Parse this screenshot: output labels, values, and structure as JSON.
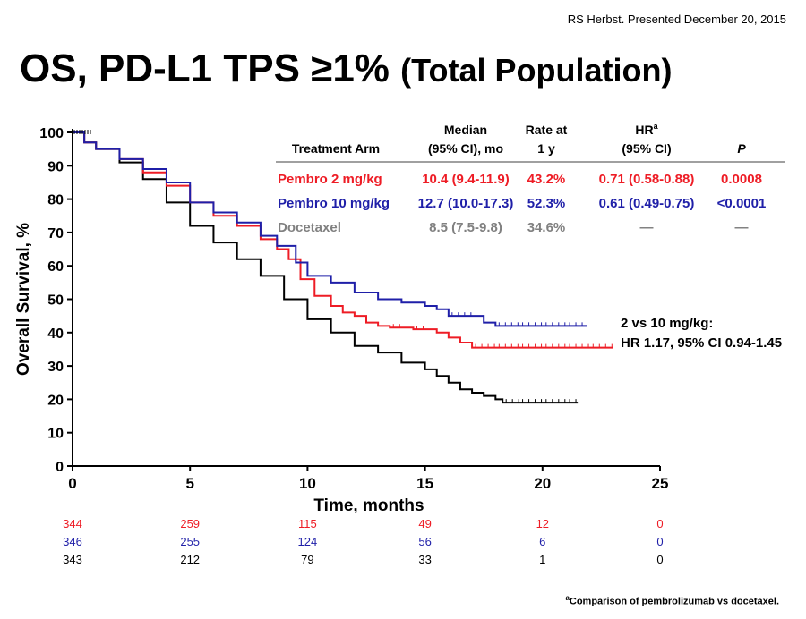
{
  "credit": "RS Herbst. Presented December 20, 2015",
  "title_main": "OS, PD-L1 TPS ≥1%",
  "title_sub": "(Total Population)",
  "table": {
    "headers": [
      [
        "Treatment Arm"
      ],
      [
        "Median",
        "(95% CI), mo"
      ],
      [
        "Rate at",
        "1 y"
      ],
      [
        "HR",
        "(95% CI)"
      ],
      [
        "P"
      ]
    ],
    "hr_sup": "a",
    "rows": [
      {
        "arm": "Pembro 2 mg/kg",
        "median": "10.4 (9.4-11.9)",
        "rate": "43.2%",
        "hr": "0.71 (0.58-0.88)",
        "p": "0.0008",
        "color": "#ee1c25"
      },
      {
        "arm": "Pembro 10 mg/kg",
        "median": "12.7 (10.0-17.3)",
        "rate": "52.3%",
        "hr": "0.61 (0.49-0.75)",
        "p": "<0.0001",
        "color": "#1f1fa8"
      },
      {
        "arm": "Docetaxel",
        "median": "8.5 (7.5-9.8)",
        "rate": "34.6%",
        "hr": "—",
        "p": "—",
        "color": "#808080"
      }
    ]
  },
  "comparison": {
    "line1": "2 vs 10 mg/kg:",
    "line2": "HR 1.17, 95% CI 0.94-1.45"
  },
  "footnote": {
    "sup": "a",
    "text": "Comparison of pembrolizumab vs docetaxel."
  },
  "chart_data": {
    "type": "line",
    "xlabel": "Time, months",
    "ylabel": "Overall Survival, %",
    "xlim": [
      0,
      25
    ],
    "ylim": [
      0,
      100
    ],
    "xticks": [
      0,
      5,
      10,
      15,
      20,
      25
    ],
    "yticks": [
      0,
      10,
      20,
      30,
      40,
      50,
      60,
      70,
      80,
      90,
      100
    ],
    "series": [
      {
        "color": "#ee1c25",
        "step": true,
        "x": [
          0,
          0.5,
          1,
          2,
          3,
          4,
          5,
          6,
          7,
          8,
          8.7,
          9.2,
          9.7,
          10.3,
          11,
          11.5,
          12,
          12.5,
          13,
          13.5,
          14,
          14.5,
          15,
          15.5,
          16,
          16.5,
          17,
          18,
          19,
          20,
          21,
          22,
          23
        ],
        "y": [
          100,
          97,
          95,
          92,
          88,
          84,
          79,
          75,
          72,
          68,
          65,
          62,
          56,
          51,
          48,
          46,
          45,
          43,
          42,
          41.5,
          41.5,
          41,
          41,
          40,
          38.5,
          37,
          35.5,
          35.5,
          35.5,
          35.5,
          35.5,
          35.5,
          35.5
        ]
      },
      {
        "color": "#1f1fa8",
        "step": true,
        "x": [
          0,
          0.5,
          1,
          2,
          3,
          4,
          5,
          6,
          7,
          8,
          8.7,
          9.5,
          10,
          11,
          12,
          13,
          14,
          15,
          15.5,
          16,
          17,
          17.5,
          18,
          19,
          20,
          21,
          21.9
        ],
        "y": [
          100,
          97,
          95,
          92,
          89,
          85,
          79,
          76,
          73,
          69,
          66,
          61,
          57,
          55,
          52,
          50,
          49,
          48,
          47,
          45,
          45,
          43,
          42,
          42,
          42,
          42,
          42
        ]
      },
      {
        "color": "#000000",
        "step": true,
        "x": [
          0,
          0.5,
          1,
          2,
          3,
          4,
          5,
          6,
          7,
          8,
          9,
          10,
          11,
          12,
          13,
          14,
          15,
          15.5,
          16,
          16.5,
          17,
          17.5,
          18,
          18.3,
          19,
          20,
          21,
          21.5
        ],
        "y": [
          100,
          97,
          95,
          91,
          86,
          79,
          72,
          67,
          62,
          57,
          50,
          44,
          40,
          36,
          34,
          31,
          29,
          27,
          25,
          23,
          22,
          21,
          20,
          19,
          19,
          19,
          19,
          19
        ]
      }
    ]
  },
  "at_risk": {
    "times": [
      0,
      5,
      10,
      15,
      20,
      25
    ],
    "rows": [
      {
        "color": "#ee1c25",
        "values": [
          "344",
          "259",
          "115",
          "49",
          "12",
          "0"
        ]
      },
      {
        "color": "#1f1fa8",
        "values": [
          "346",
          "255",
          "124",
          "56",
          "6",
          "0"
        ]
      },
      {
        "color": "#000000",
        "values": [
          "343",
          "212",
          "79",
          "33",
          "1",
          "0"
        ]
      }
    ]
  }
}
